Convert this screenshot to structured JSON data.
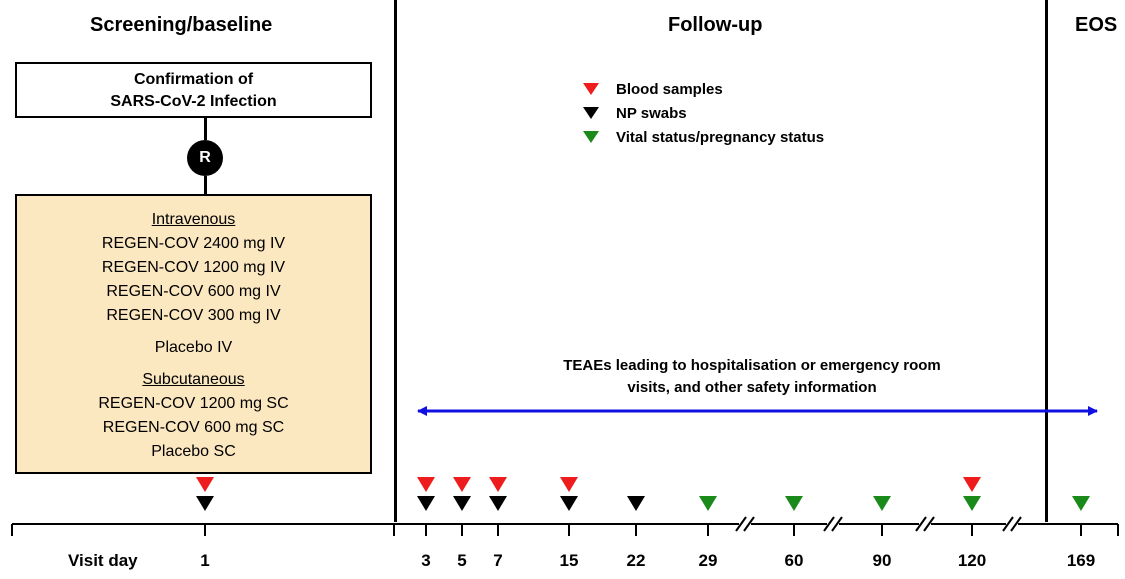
{
  "headers": {
    "screening": "Screening/baseline",
    "followup": "Follow-up",
    "eos": "EOS"
  },
  "confirmation_box": [
    "Confirmation of",
    "SARS-CoV-2 Infection"
  ],
  "randomization_label": "R",
  "treatment_arms": {
    "iv_header": "Intravenous",
    "iv_arms": [
      "REGEN-COV 2400 mg IV",
      "REGEN-COV 1200 mg IV",
      "REGEN-COV 600 mg IV",
      "REGEN-COV 300 mg IV"
    ],
    "placebo_iv": "Placebo IV",
    "sc_header": "Subcutaneous",
    "sc_arms": [
      "REGEN-COV 1200 mg SC",
      "REGEN-COV 600 mg SC",
      "Placebo SC"
    ]
  },
  "legend": [
    {
      "key": "blood",
      "label": "Blood samples",
      "color": "#ee1c1c"
    },
    {
      "key": "np",
      "label": "NP swabs",
      "color": "#000000"
    },
    {
      "key": "vital",
      "label": "Vital status/pregnancy status",
      "color": "#1a8a1a"
    }
  ],
  "teae_text": [
    "TEAEs leading to hospitalisation or emergency room",
    "visits, and other safety information"
  ],
  "arrow_color": "#1010e0",
  "visit_label": "Visit day",
  "visit_days": [
    {
      "day": "1",
      "blood": true,
      "np": true,
      "vital": false
    },
    {
      "day": "3",
      "blood": true,
      "np": true,
      "vital": false
    },
    {
      "day": "5",
      "blood": true,
      "np": true,
      "vital": false
    },
    {
      "day": "7",
      "blood": true,
      "np": true,
      "vital": false
    },
    {
      "day": "15",
      "blood": true,
      "np": true,
      "vital": false
    },
    {
      "day": "22",
      "blood": false,
      "np": true,
      "vital": false
    },
    {
      "day": "29",
      "blood": false,
      "np": false,
      "vital": true
    },
    {
      "day": "60",
      "blood": false,
      "np": false,
      "vital": true
    },
    {
      "day": "90",
      "blood": false,
      "np": false,
      "vital": true
    },
    {
      "day": "120",
      "blood": true,
      "np": false,
      "vital": true
    },
    {
      "day": "169",
      "blood": false,
      "np": false,
      "vital": true
    }
  ]
}
